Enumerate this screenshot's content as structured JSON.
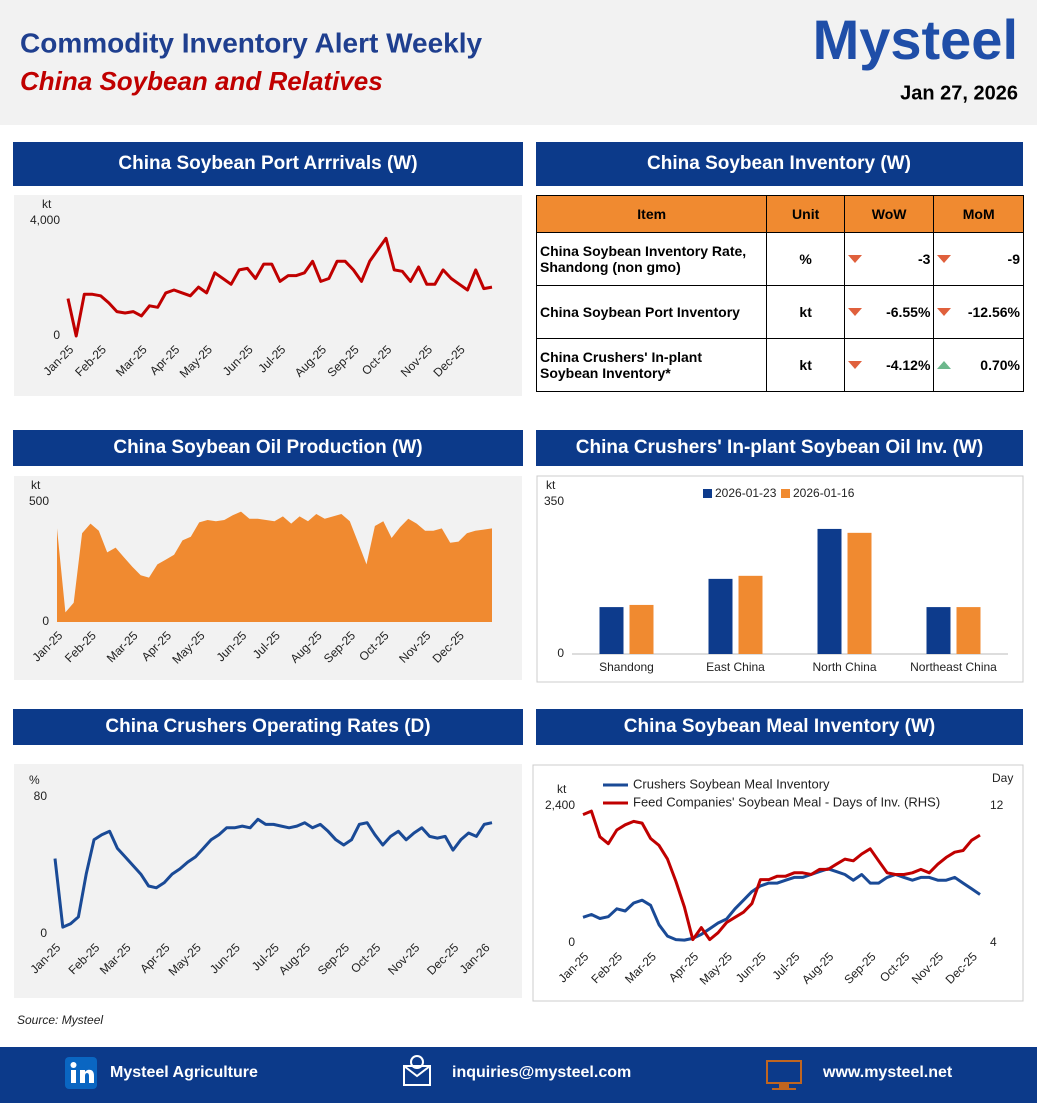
{
  "header": {
    "title": "Commodity Inventory Alert Weekly",
    "subtitle": "China Soybean and Relatives",
    "logo": "Mysteel",
    "date": "Jan 27, 2026"
  },
  "chart_data": [
    {
      "type": "line",
      "title": "China Soybean Port Arrrivals (W)",
      "y_label": "kt",
      "color": "#c00000",
      "categories": [
        "Jan-25",
        null,
        null,
        null,
        "Feb-25",
        null,
        null,
        null,
        null,
        "Mar-25",
        null,
        null,
        null,
        "Apr-25",
        null,
        null,
        null,
        "May-25",
        null,
        null,
        null,
        null,
        "Jun-25",
        null,
        null,
        null,
        "Jul-25",
        null,
        null,
        null,
        null,
        "Aug-25",
        null,
        null,
        null,
        "Sep-25",
        null,
        null,
        null,
        "Oct-25",
        null,
        null,
        null,
        null,
        "Nov-25",
        null,
        null,
        null,
        "Dec-25",
        null,
        null,
        null,
        null
      ],
      "values": [
        1300,
        0,
        1450,
        1450,
        1400,
        1150,
        850,
        800,
        850,
        700,
        1050,
        1000,
        1500,
        1600,
        1500,
        1400,
        1700,
        1500,
        2200,
        2000,
        1800,
        2300,
        2350,
        2000,
        2500,
        2500,
        1900,
        2100,
        2100,
        2200,
        2600,
        1900,
        2000,
        2600,
        2600,
        2300,
        1900,
        2600,
        3000,
        3400,
        2300,
        2250,
        1900,
        2400,
        1800,
        1800,
        2300,
        2000,
        1800,
        1600,
        2300,
        1650,
        1700
      ],
      "ylim": [
        0,
        4000
      ],
      "yticks": [
        0,
        {
          "value": 4000,
          "label": "4,000"
        }
      ]
    },
    {
      "type": "area",
      "title": "China Soybean Oil Production (W)",
      "y_label": "kt",
      "color": "#f08a30",
      "categories": [
        "Jan-25",
        null,
        null,
        null,
        "Feb-25",
        null,
        null,
        null,
        null,
        "Mar-25",
        null,
        null,
        null,
        "Apr-25",
        null,
        null,
        null,
        "May-25",
        null,
        null,
        null,
        null,
        "Jun-25",
        null,
        null,
        null,
        "Jul-25",
        null,
        null,
        null,
        null,
        "Aug-25",
        null,
        null,
        null,
        "Sep-25",
        null,
        null,
        null,
        "Oct-25",
        null,
        null,
        null,
        null,
        "Nov-25",
        null,
        null,
        null,
        "Dec-25",
        null,
        null,
        null,
        null
      ],
      "values": [
        390,
        40,
        80,
        370,
        410,
        380,
        290,
        310,
        270,
        230,
        195,
        185,
        240,
        260,
        280,
        340,
        355,
        415,
        425,
        420,
        425,
        445,
        460,
        430,
        430,
        425,
        420,
        440,
        410,
        440,
        420,
        450,
        430,
        440,
        450,
        420,
        330,
        240,
        400,
        420,
        350,
        395,
        430,
        410,
        380,
        380,
        390,
        330,
        335,
        370,
        380,
        385,
        390
      ],
      "ylim": [
        0,
        500
      ],
      "yticks": [
        0,
        500
      ]
    },
    {
      "type": "bar",
      "title": "China Crushers' In-plant Soybean Oil Inv. (W)",
      "y_label": "kt",
      "legend": "top",
      "categories": [
        "Shandong",
        "East China",
        "North China",
        "Northeast China"
      ],
      "series": [
        {
          "name": "2026-01-23",
          "color": "#0d3b8c",
          "values": [
            108,
            173,
            288,
            108
          ]
        },
        {
          "name": "2026-01-16",
          "color": "#f08a30",
          "values": [
            113,
            180,
            279,
            108
          ]
        }
      ],
      "ylim": [
        0,
        350
      ],
      "yticks": [
        0,
        350
      ]
    },
    {
      "type": "line",
      "title": "China Crushers Operating Rates (D)",
      "y_label": "%",
      "color": "#1a4a96",
      "categories": [
        "Jan-25",
        null,
        null,
        null,
        null,
        "Feb-25",
        null,
        null,
        null,
        "Mar-25",
        null,
        null,
        null,
        null,
        "Apr-25",
        null,
        null,
        null,
        "May-25",
        null,
        null,
        null,
        null,
        "Jun-25",
        null,
        null,
        null,
        null,
        "Jul-25",
        null,
        null,
        null,
        "Aug-25",
        null,
        null,
        null,
        null,
        "Sep-25",
        null,
        null,
        null,
        "Oct-25",
        null,
        null,
        null,
        null,
        "Nov-25",
        null,
        null,
        null,
        null,
        "Dec-25",
        null,
        null,
        null,
        "Jan-26",
        null
      ],
      "values": [
        44,
        4,
        6,
        10,
        35,
        55,
        58,
        60,
        50,
        45,
        40,
        35,
        28,
        27,
        30,
        35,
        38,
        42,
        45,
        50,
        55,
        58,
        62,
        62,
        63,
        62,
        67,
        64,
        64,
        63,
        62,
        63,
        65,
        62,
        64,
        60,
        55,
        52,
        55,
        64,
        65,
        58,
        52,
        57,
        60,
        55,
        59,
        62,
        57,
        56,
        57,
        49,
        55,
        59,
        57,
        64,
        65
      ],
      "ylim": [
        0,
        80
      ],
      "yticks": [
        0,
        80
      ]
    },
    {
      "type": "line",
      "title": "China Soybean Meal Inventory (W)",
      "y_label": "kt",
      "y2_label": "Day",
      "legend": "top-left",
      "categories": [
        "Jan-25",
        null,
        null,
        null,
        "Feb-25",
        null,
        null,
        null,
        "Mar-25",
        null,
        null,
        null,
        null,
        "Apr-25",
        null,
        null,
        null,
        "May-25",
        null,
        null,
        null,
        "Jun-25",
        null,
        null,
        null,
        "Jul-25",
        null,
        null,
        null,
        "Aug-25",
        null,
        null,
        null,
        null,
        "Sep-25",
        null,
        null,
        null,
        "Oct-25",
        null,
        null,
        null,
        "Nov-25",
        null,
        null,
        null,
        "Dec-25",
        null
      ],
      "series": [
        {
          "name": "Crushers Soybean Meal Inventory",
          "color": "#1a4a96",
          "values": [
            450,
            500,
            430,
            460,
            600,
            560,
            700,
            750,
            660,
            320,
            120,
            60,
            50,
            80,
            150,
            250,
            350,
            420,
            600,
            750,
            900,
            1000,
            1050,
            1050,
            1100,
            1150,
            1150,
            1200,
            1250,
            1300,
            1250,
            1200,
            1100,
            1200,
            1050,
            1050,
            1150,
            1200,
            1150,
            1100,
            1150,
            1150,
            1100,
            1100,
            1150,
            1050,
            950,
            850
          ]
        },
        {
          "name": "Feed Companies' Soybean Meal - Days of Inv. (RHS)",
          "color": "#c00000",
          "axis": "y2",
          "values": [
            11.5,
            11.7,
            10.2,
            9.8,
            10.6,
            10.9,
            11.1,
            11.0,
            10.1,
            9.7,
            8.9,
            7.6,
            6.1,
            4.2,
            4.9,
            4.2,
            4.6,
            5.2,
            5.5,
            5.8,
            6.3,
            7.7,
            7.7,
            7.9,
            7.9,
            8.1,
            8.1,
            8.0,
            8.3,
            8.3,
            8.6,
            8.9,
            8.8,
            9.2,
            9.5,
            8.8,
            8.1,
            8.0,
            8.0,
            8.1,
            8.3,
            8.1,
            8.6,
            9.0,
            9.3,
            9.4,
            10.0,
            10.3
          ]
        }
      ],
      "ylim": [
        0,
        2400
      ],
      "yticks": [
        0,
        {
          "value": 2400,
          "label": "2,400"
        }
      ],
      "y2lim": [
        4,
        12
      ],
      "y2ticks": [
        4,
        12
      ]
    }
  ],
  "table": {
    "title": "China Soybean Inventory (W)",
    "columns": [
      "Item",
      "Unit",
      "WoW",
      "MoM"
    ],
    "rows": [
      {
        "item": "China Soybean Inventory Rate, Shandong (non gmo)",
        "unit": "%",
        "wow": "-3",
        "wow_trend": "down",
        "mom": "-9",
        "mom_trend": "down"
      },
      {
        "item": "China Soybean Port Inventory",
        "unit": "kt",
        "wow": "-6.55%",
        "wow_trend": "down",
        "mom": "-12.56%",
        "mom_trend": "down"
      },
      {
        "item": "China Crushers' In-plant Soybean Inventory*",
        "unit": "kt",
        "wow": "-4.12%",
        "wow_trend": "down",
        "mom": "0.70%",
        "mom_trend": "up"
      }
    ]
  },
  "source": "Source: Mysteel",
  "footer": {
    "linkedin": "Mysteel Agriculture",
    "email": "inquiries@mysteel.com",
    "website": "www.mysteel.net"
  }
}
